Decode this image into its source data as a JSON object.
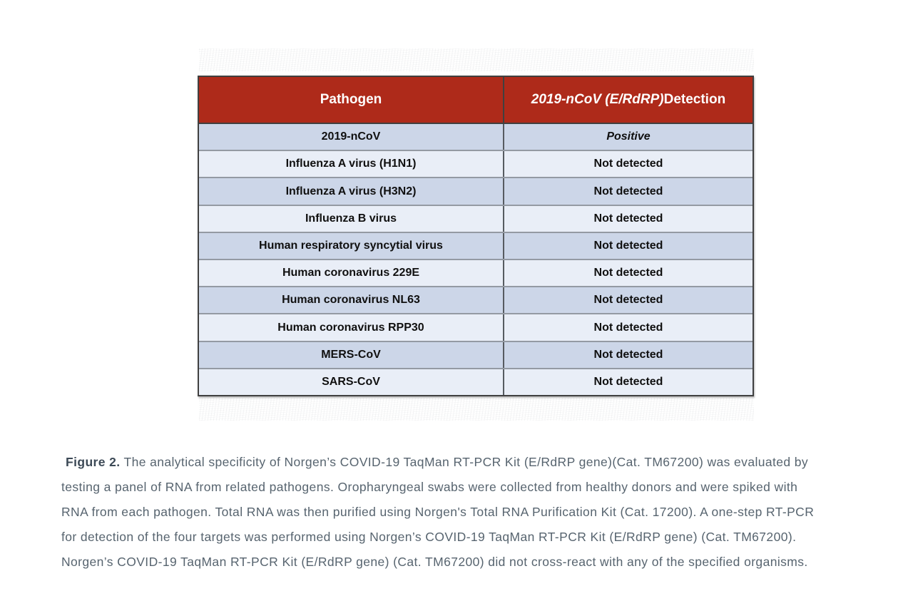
{
  "colors": {
    "header_bg": "#ae2a1a",
    "header_text": "#ffffff",
    "row_dark": "#ccd6e8",
    "row_light": "#e9eef7",
    "cell_text": "#101010",
    "caption_text": "#57646f",
    "caption_label_text": "#3c4956"
  },
  "table": {
    "header": {
      "pathogen": "Pathogen",
      "detection_italic": "2019-nCoV (E/RdRP)",
      "detection_rest": " Detection"
    },
    "rows": [
      {
        "pathogen": "2019-nCoV",
        "detection": "Positive"
      },
      {
        "pathogen": "Influenza A virus (H1N1)",
        "detection": "Not detected"
      },
      {
        "pathogen": "Influenza A virus (H3N2)",
        "detection": "Not detected"
      },
      {
        "pathogen": "Influenza B virus",
        "detection": "Not detected"
      },
      {
        "pathogen": "Human respiratory syncytial virus",
        "detection": "Not detected"
      },
      {
        "pathogen": "Human coronavirus 229E",
        "detection": "Not detected"
      },
      {
        "pathogen": "Human coronavirus NL63",
        "detection": "Not detected"
      },
      {
        "pathogen": "Human coronavirus RPP30",
        "detection": "Not detected"
      },
      {
        "pathogen": "MERS-CoV",
        "detection": "Not detected"
      },
      {
        "pathogen": "SARS-CoV",
        "detection": "Not detected"
      }
    ]
  },
  "caption": {
    "label": "Figure 2.",
    "line1_rest": " The analytical specificity of Norgen’s COVID-19 TaqMan RT-PCR Kit (E/RdRP gene)(Cat. TM67200) was evaluated by",
    "lines": [
      "testing a panel of RNA from related pathogens. Oropharyngeal swabs were collected from healthy donors and were spiked with",
      "RNA from each pathogen. Total RNA was then purified using Norgen's Total RNA Purification Kit (Cat. 17200). A one-step RT-PCR",
      "for detection of the four targets was performed using Norgen’s COVID-19 TaqMan RT-PCR Kit (E/RdRP gene) (Cat. TM67200).",
      "Norgen’s COVID-19 TaqMan RT-PCR Kit (E/RdRP gene) (Cat. TM67200) did not cross-react with any of the specified organisms."
    ]
  }
}
